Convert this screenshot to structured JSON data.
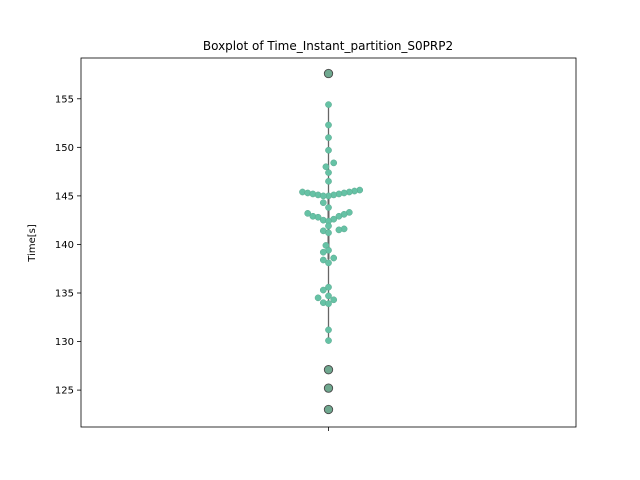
{
  "chart_data": {
    "type": "boxplot",
    "title": "Boxplot of Time_Instant_partition_S0PRP2",
    "ylabel": "Time[s]",
    "xlabel": "",
    "ylim": [
      121.2,
      159.2
    ],
    "yticks": [
      125,
      130,
      135,
      140,
      145,
      150,
      155
    ],
    "grid": false,
    "legend": "none",
    "box": {
      "min": 130.1,
      "q1": 138.5,
      "median": 142.4,
      "q3": 145.1,
      "max": 154.4
    },
    "outliers": [
      157.6,
      127.1,
      125.2,
      123.0
    ],
    "points": [
      {
        "y": 154.4,
        "offset": 0
      },
      {
        "y": 152.3,
        "offset": 0
      },
      {
        "y": 151.0,
        "offset": 0
      },
      {
        "y": 149.7,
        "offset": 0
      },
      {
        "y": 148.4,
        "offset": 1
      },
      {
        "y": 148.0,
        "offset": -0.5
      },
      {
        "y": 147.4,
        "offset": 0
      },
      {
        "y": 146.5,
        "offset": 0
      },
      {
        "y": 145.6,
        "offset": 6
      },
      {
        "y": 145.5,
        "offset": 5
      },
      {
        "y": 145.4,
        "offset": 4
      },
      {
        "y": 145.4,
        "offset": -5
      },
      {
        "y": 145.3,
        "offset": 3
      },
      {
        "y": 145.3,
        "offset": -4
      },
      {
        "y": 145.2,
        "offset": 2
      },
      {
        "y": 145.2,
        "offset": -3
      },
      {
        "y": 145.1,
        "offset": 1
      },
      {
        "y": 145.1,
        "offset": -2
      },
      {
        "y": 145.0,
        "offset": 0
      },
      {
        "y": 145.0,
        "offset": -1
      },
      {
        "y": 144.3,
        "offset": -1
      },
      {
        "y": 143.8,
        "offset": 0
      },
      {
        "y": 143.3,
        "offset": 4
      },
      {
        "y": 143.2,
        "offset": -4
      },
      {
        "y": 143.1,
        "offset": 3
      },
      {
        "y": 142.9,
        "offset": -3
      },
      {
        "y": 142.9,
        "offset": 2
      },
      {
        "y": 142.8,
        "offset": -2
      },
      {
        "y": 142.6,
        "offset": 1
      },
      {
        "y": 142.5,
        "offset": -1
      },
      {
        "y": 142.4,
        "offset": 0
      },
      {
        "y": 141.9,
        "offset": 0
      },
      {
        "y": 141.6,
        "offset": 3
      },
      {
        "y": 141.5,
        "offset": 2
      },
      {
        "y": 141.4,
        "offset": -1
      },
      {
        "y": 141.2,
        "offset": 0
      },
      {
        "y": 139.9,
        "offset": -0.5
      },
      {
        "y": 139.4,
        "offset": 0
      },
      {
        "y": 139.2,
        "offset": -1
      },
      {
        "y": 138.6,
        "offset": 1
      },
      {
        "y": 138.4,
        "offset": -1
      },
      {
        "y": 138.1,
        "offset": 0
      },
      {
        "y": 135.6,
        "offset": 0
      },
      {
        "y": 135.3,
        "offset": -1
      },
      {
        "y": 134.7,
        "offset": 0
      },
      {
        "y": 134.5,
        "offset": -2
      },
      {
        "y": 134.3,
        "offset": 1
      },
      {
        "y": 134.0,
        "offset": -1
      },
      {
        "y": 133.9,
        "offset": 0
      },
      {
        "y": 131.2,
        "offset": 0
      },
      {
        "y": 130.1,
        "offset": 0
      }
    ],
    "colors": {
      "point": "#66c2a5",
      "point_edge": "#5aa88f",
      "outlier_fill": "#6fa88f",
      "outlier_edge": "#4a4a4a",
      "box_line": "#666666"
    }
  }
}
